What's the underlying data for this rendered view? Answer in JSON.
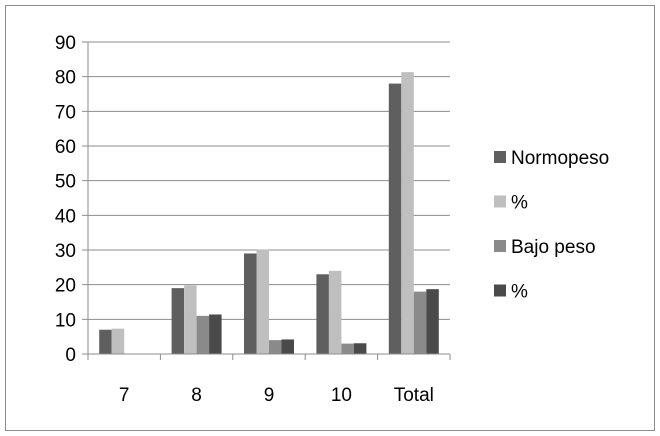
{
  "chart_data": {
    "type": "bar",
    "categories": [
      "7",
      "8",
      "9",
      "10",
      "Total"
    ],
    "series": [
      {
        "name": "Normopeso",
        "values": [
          7,
          19,
          29,
          23,
          78
        ],
        "color": "#5f5f5f"
      },
      {
        "name": "%",
        "values": [
          7.3,
          19.8,
          30.2,
          24,
          81.3
        ],
        "color": "#bfbfbf"
      },
      {
        "name": "Bajo peso",
        "values": [
          0,
          11,
          4,
          3,
          18
        ],
        "color": "#8a8a8a"
      },
      {
        "name": "%",
        "values": [
          0,
          11.4,
          4.2,
          3.1,
          18.7
        ],
        "color": "#4a4a4a"
      }
    ],
    "title": "",
    "xlabel": "",
    "ylabel": "",
    "ylim": [
      0,
      90
    ],
    "yticks": [
      "0",
      "10",
      "20",
      "30",
      "40",
      "50",
      "60",
      "70",
      "80",
      "90"
    ],
    "grid": true,
    "legend_position": "right"
  }
}
